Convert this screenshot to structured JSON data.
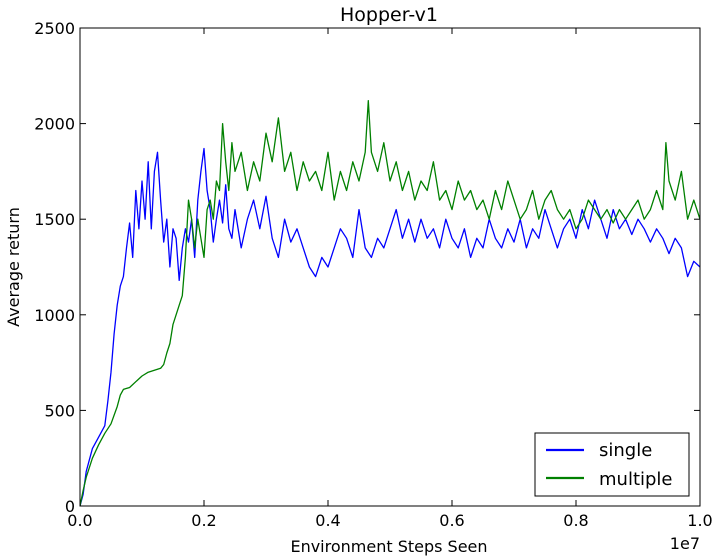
{
  "chart_data": {
    "type": "line",
    "title": "Hopper-v1",
    "xlabel": "Environment Steps Seen",
    "ylabel": "Average return",
    "x_multiplier_label": "1e7",
    "xlim": [
      0.0,
      1.0
    ],
    "ylim": [
      0,
      2500
    ],
    "x_ticks": [
      0.0,
      0.2,
      0.4,
      0.6,
      0.8,
      1.0
    ],
    "x_tick_labels": [
      "0.0",
      "0.2",
      "0.4",
      "0.6",
      "0.8",
      "1.0"
    ],
    "y_ticks": [
      0,
      500,
      1000,
      1500,
      2000,
      2500
    ],
    "y_tick_labels": [
      "0",
      "500",
      "1000",
      "1500",
      "2000",
      "2500"
    ],
    "grid": false,
    "legend_position": "lower-right",
    "series": [
      {
        "name": "single",
        "color": "#0000ff",
        "points": [
          [
            0.0,
            0
          ],
          [
            0.005,
            60
          ],
          [
            0.01,
            180
          ],
          [
            0.02,
            300
          ],
          [
            0.03,
            360
          ],
          [
            0.04,
            420
          ],
          [
            0.045,
            550
          ],
          [
            0.05,
            700
          ],
          [
            0.055,
            900
          ],
          [
            0.06,
            1050
          ],
          [
            0.065,
            1150
          ],
          [
            0.07,
            1200
          ],
          [
            0.075,
            1350
          ],
          [
            0.08,
            1480
          ],
          [
            0.085,
            1300
          ],
          [
            0.09,
            1650
          ],
          [
            0.095,
            1450
          ],
          [
            0.1,
            1700
          ],
          [
            0.105,
            1500
          ],
          [
            0.11,
            1800
          ],
          [
            0.115,
            1450
          ],
          [
            0.12,
            1750
          ],
          [
            0.125,
            1850
          ],
          [
            0.13,
            1600
          ],
          [
            0.135,
            1380
          ],
          [
            0.14,
            1500
          ],
          [
            0.145,
            1250
          ],
          [
            0.15,
            1450
          ],
          [
            0.155,
            1400
          ],
          [
            0.16,
            1180
          ],
          [
            0.165,
            1350
          ],
          [
            0.17,
            1450
          ],
          [
            0.175,
            1380
          ],
          [
            0.18,
            1500
          ],
          [
            0.185,
            1300
          ],
          [
            0.19,
            1600
          ],
          [
            0.195,
            1750
          ],
          [
            0.2,
            1870
          ],
          [
            0.205,
            1650
          ],
          [
            0.21,
            1550
          ],
          [
            0.215,
            1380
          ],
          [
            0.22,
            1500
          ],
          [
            0.225,
            1600
          ],
          [
            0.23,
            1480
          ],
          [
            0.235,
            1680
          ],
          [
            0.24,
            1450
          ],
          [
            0.245,
            1400
          ],
          [
            0.25,
            1550
          ],
          [
            0.26,
            1350
          ],
          [
            0.27,
            1500
          ],
          [
            0.28,
            1600
          ],
          [
            0.29,
            1450
          ],
          [
            0.3,
            1620
          ],
          [
            0.31,
            1400
          ],
          [
            0.32,
            1300
          ],
          [
            0.33,
            1500
          ],
          [
            0.34,
            1380
          ],
          [
            0.35,
            1450
          ],
          [
            0.36,
            1350
          ],
          [
            0.37,
            1250
          ],
          [
            0.38,
            1200
          ],
          [
            0.39,
            1300
          ],
          [
            0.4,
            1250
          ],
          [
            0.41,
            1350
          ],
          [
            0.42,
            1450
          ],
          [
            0.43,
            1400
          ],
          [
            0.44,
            1300
          ],
          [
            0.45,
            1550
          ],
          [
            0.46,
            1350
          ],
          [
            0.47,
            1300
          ],
          [
            0.48,
            1400
          ],
          [
            0.49,
            1350
          ],
          [
            0.5,
            1450
          ],
          [
            0.51,
            1550
          ],
          [
            0.52,
            1400
          ],
          [
            0.53,
            1500
          ],
          [
            0.54,
            1380
          ],
          [
            0.55,
            1500
          ],
          [
            0.56,
            1400
          ],
          [
            0.57,
            1450
          ],
          [
            0.58,
            1350
          ],
          [
            0.59,
            1500
          ],
          [
            0.6,
            1400
          ],
          [
            0.61,
            1350
          ],
          [
            0.62,
            1450
          ],
          [
            0.63,
            1300
          ],
          [
            0.64,
            1400
          ],
          [
            0.65,
            1350
          ],
          [
            0.66,
            1500
          ],
          [
            0.67,
            1400
          ],
          [
            0.68,
            1350
          ],
          [
            0.69,
            1450
          ],
          [
            0.7,
            1380
          ],
          [
            0.71,
            1500
          ],
          [
            0.72,
            1350
          ],
          [
            0.73,
            1450
          ],
          [
            0.74,
            1400
          ],
          [
            0.75,
            1550
          ],
          [
            0.76,
            1450
          ],
          [
            0.77,
            1350
          ],
          [
            0.78,
            1450
          ],
          [
            0.79,
            1500
          ],
          [
            0.8,
            1400
          ],
          [
            0.81,
            1550
          ],
          [
            0.82,
            1450
          ],
          [
            0.83,
            1600
          ],
          [
            0.84,
            1500
          ],
          [
            0.85,
            1400
          ],
          [
            0.86,
            1550
          ],
          [
            0.87,
            1450
          ],
          [
            0.88,
            1500
          ],
          [
            0.89,
            1420
          ],
          [
            0.9,
            1500
          ],
          [
            0.91,
            1450
          ],
          [
            0.92,
            1380
          ],
          [
            0.93,
            1450
          ],
          [
            0.94,
            1400
          ],
          [
            0.95,
            1320
          ],
          [
            0.96,
            1400
          ],
          [
            0.97,
            1350
          ],
          [
            0.98,
            1200
          ],
          [
            0.99,
            1280
          ],
          [
            1.0,
            1250
          ]
        ]
      },
      {
        "name": "multiple",
        "color": "#008000",
        "points": [
          [
            0.0,
            0
          ],
          [
            0.005,
            80
          ],
          [
            0.01,
            150
          ],
          [
            0.02,
            250
          ],
          [
            0.03,
            320
          ],
          [
            0.04,
            380
          ],
          [
            0.05,
            430
          ],
          [
            0.06,
            520
          ],
          [
            0.065,
            580
          ],
          [
            0.07,
            610
          ],
          [
            0.08,
            620
          ],
          [
            0.09,
            650
          ],
          [
            0.1,
            680
          ],
          [
            0.11,
            700
          ],
          [
            0.12,
            710
          ],
          [
            0.13,
            720
          ],
          [
            0.135,
            740
          ],
          [
            0.14,
            800
          ],
          [
            0.145,
            850
          ],
          [
            0.15,
            950
          ],
          [
            0.155,
            1000
          ],
          [
            0.16,
            1050
          ],
          [
            0.165,
            1100
          ],
          [
            0.17,
            1300
          ],
          [
            0.175,
            1600
          ],
          [
            0.18,
            1500
          ],
          [
            0.185,
            1350
          ],
          [
            0.19,
            1500
          ],
          [
            0.195,
            1400
          ],
          [
            0.2,
            1300
          ],
          [
            0.205,
            1550
          ],
          [
            0.21,
            1600
          ],
          [
            0.215,
            1500
          ],
          [
            0.22,
            1700
          ],
          [
            0.225,
            1650
          ],
          [
            0.23,
            2000
          ],
          [
            0.235,
            1800
          ],
          [
            0.24,
            1650
          ],
          [
            0.245,
            1900
          ],
          [
            0.25,
            1750
          ],
          [
            0.26,
            1850
          ],
          [
            0.27,
            1650
          ],
          [
            0.28,
            1800
          ],
          [
            0.29,
            1700
          ],
          [
            0.3,
            1950
          ],
          [
            0.31,
            1800
          ],
          [
            0.32,
            2030
          ],
          [
            0.33,
            1750
          ],
          [
            0.34,
            1850
          ],
          [
            0.35,
            1650
          ],
          [
            0.36,
            1800
          ],
          [
            0.37,
            1700
          ],
          [
            0.38,
            1750
          ],
          [
            0.39,
            1650
          ],
          [
            0.4,
            1850
          ],
          [
            0.41,
            1600
          ],
          [
            0.42,
            1750
          ],
          [
            0.43,
            1650
          ],
          [
            0.44,
            1800
          ],
          [
            0.45,
            1700
          ],
          [
            0.46,
            1850
          ],
          [
            0.465,
            2120
          ],
          [
            0.47,
            1850
          ],
          [
            0.48,
            1750
          ],
          [
            0.49,
            1900
          ],
          [
            0.5,
            1700
          ],
          [
            0.51,
            1800
          ],
          [
            0.52,
            1650
          ],
          [
            0.53,
            1750
          ],
          [
            0.54,
            1600
          ],
          [
            0.55,
            1700
          ],
          [
            0.56,
            1650
          ],
          [
            0.57,
            1800
          ],
          [
            0.58,
            1600
          ],
          [
            0.59,
            1650
          ],
          [
            0.6,
            1550
          ],
          [
            0.61,
            1700
          ],
          [
            0.62,
            1600
          ],
          [
            0.63,
            1650
          ],
          [
            0.64,
            1550
          ],
          [
            0.65,
            1600
          ],
          [
            0.66,
            1500
          ],
          [
            0.67,
            1650
          ],
          [
            0.68,
            1550
          ],
          [
            0.69,
            1700
          ],
          [
            0.7,
            1600
          ],
          [
            0.71,
            1500
          ],
          [
            0.72,
            1550
          ],
          [
            0.73,
            1650
          ],
          [
            0.74,
            1500
          ],
          [
            0.75,
            1600
          ],
          [
            0.76,
            1650
          ],
          [
            0.77,
            1550
          ],
          [
            0.78,
            1500
          ],
          [
            0.79,
            1550
          ],
          [
            0.8,
            1450
          ],
          [
            0.81,
            1500
          ],
          [
            0.82,
            1600
          ],
          [
            0.83,
            1550
          ],
          [
            0.84,
            1500
          ],
          [
            0.85,
            1550
          ],
          [
            0.86,
            1480
          ],
          [
            0.87,
            1550
          ],
          [
            0.88,
            1500
          ],
          [
            0.89,
            1550
          ],
          [
            0.9,
            1600
          ],
          [
            0.91,
            1500
          ],
          [
            0.92,
            1550
          ],
          [
            0.93,
            1650
          ],
          [
            0.94,
            1550
          ],
          [
            0.945,
            1900
          ],
          [
            0.95,
            1700
          ],
          [
            0.96,
            1600
          ],
          [
            0.97,
            1750
          ],
          [
            0.98,
            1500
          ],
          [
            0.99,
            1600
          ],
          [
            1.0,
            1500
          ]
        ]
      }
    ]
  }
}
